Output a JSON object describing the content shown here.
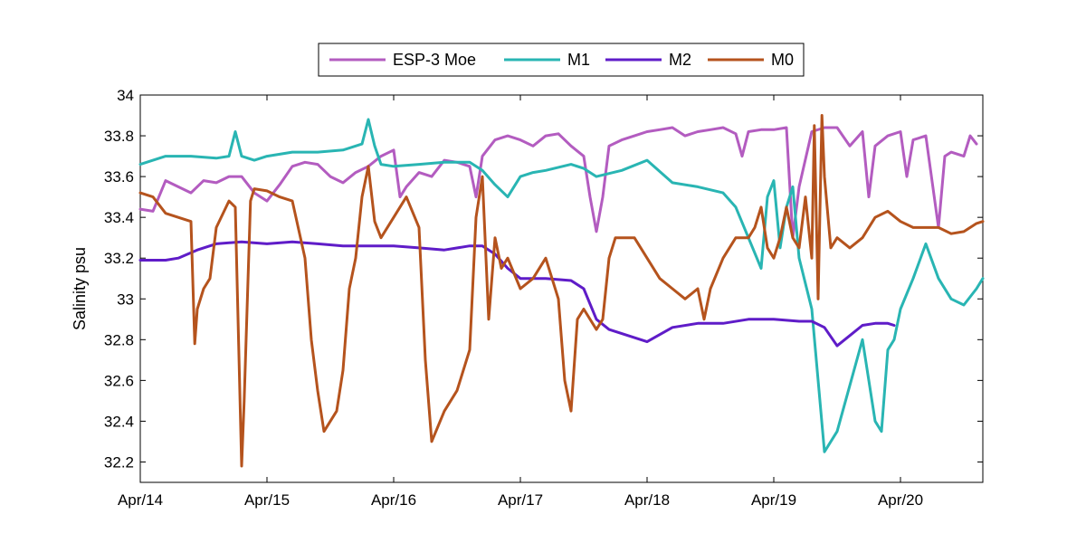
{
  "chart_data": {
    "type": "line",
    "title": "",
    "xlabel": "",
    "ylabel": "Salinity psu",
    "x_tick_labels": [
      "Apr/14",
      "Apr/15",
      "Apr/16",
      "Apr/17",
      "Apr/18",
      "Apr/19",
      "Apr/20"
    ],
    "x_range_days": [
      14.0,
      20.65
    ],
    "ylim": [
      32.1,
      34.0
    ],
    "y_ticks": [
      32.2,
      32.4,
      32.6,
      32.8,
      33.0,
      33.2,
      33.4,
      33.6,
      33.8,
      34.0
    ],
    "y_tick_labels": [
      "32.2",
      "32.4",
      "32.6",
      "32.8",
      "33",
      "33.2",
      "33.4",
      "33.6",
      "33.8",
      "34"
    ],
    "grid": false,
    "legend_position": "top, outside, horizontal",
    "series": [
      {
        "name": "ESP-3 Moe",
        "color": "#b35cc0",
        "x": [
          14.0,
          14.1,
          14.2,
          14.3,
          14.4,
          14.5,
          14.6,
          14.7,
          14.8,
          14.9,
          15.0,
          15.1,
          15.2,
          15.3,
          15.4,
          15.5,
          15.6,
          15.7,
          15.8,
          15.9,
          16.0,
          16.05,
          16.1,
          16.2,
          16.3,
          16.4,
          16.5,
          16.6,
          16.65,
          16.7,
          16.8,
          16.9,
          17.0,
          17.1,
          17.2,
          17.3,
          17.4,
          17.5,
          17.55,
          17.6,
          17.65,
          17.7,
          17.8,
          17.9,
          18.0,
          18.1,
          18.2,
          18.3,
          18.4,
          18.5,
          18.6,
          18.7,
          18.75,
          18.8,
          18.9,
          19.0,
          19.1,
          19.15,
          19.2,
          19.3,
          19.4,
          19.5,
          19.6,
          19.7,
          19.75,
          19.8,
          19.9,
          20.0,
          20.05,
          20.1,
          20.2,
          20.3,
          20.35,
          20.4,
          20.5,
          20.55,
          20.6
        ],
        "values": [
          33.44,
          33.43,
          33.58,
          33.55,
          33.52,
          33.58,
          33.57,
          33.6,
          33.6,
          33.52,
          33.48,
          33.56,
          33.65,
          33.67,
          33.66,
          33.6,
          33.57,
          33.62,
          33.65,
          33.7,
          33.73,
          33.5,
          33.55,
          33.62,
          33.6,
          33.68,
          33.67,
          33.65,
          33.5,
          33.7,
          33.78,
          33.8,
          33.78,
          33.75,
          33.8,
          33.81,
          33.75,
          33.7,
          33.5,
          33.33,
          33.5,
          33.75,
          33.78,
          33.8,
          33.82,
          33.83,
          33.84,
          33.8,
          33.82,
          33.83,
          33.84,
          33.81,
          33.7,
          33.82,
          33.83,
          33.83,
          33.84,
          33.3,
          33.55,
          33.82,
          33.84,
          33.84,
          33.75,
          33.82,
          33.5,
          33.75,
          33.8,
          33.82,
          33.6,
          33.78,
          33.8,
          33.35,
          33.7,
          33.72,
          33.7,
          33.8,
          33.76
        ]
      },
      {
        "name": "M1",
        "color": "#29b5b3",
        "x": [
          14.0,
          14.2,
          14.4,
          14.6,
          14.7,
          14.75,
          14.8,
          14.9,
          15.0,
          15.2,
          15.4,
          15.6,
          15.75,
          15.8,
          15.85,
          15.9,
          16.0,
          16.2,
          16.4,
          16.6,
          16.7,
          16.8,
          16.9,
          17.0,
          17.1,
          17.2,
          17.4,
          17.5,
          17.6,
          17.8,
          18.0,
          18.2,
          18.4,
          18.6,
          18.7,
          18.8,
          18.9,
          18.95,
          19.0,
          19.05,
          19.1,
          19.15,
          19.2,
          19.3,
          19.35,
          19.4,
          19.5,
          19.7,
          19.8,
          19.85,
          19.9,
          19.95,
          20.0,
          20.1,
          20.2,
          20.3,
          20.4,
          20.5,
          20.6,
          20.65
        ],
        "values": [
          33.66,
          33.7,
          33.7,
          33.69,
          33.7,
          33.82,
          33.7,
          33.68,
          33.7,
          33.72,
          33.72,
          33.73,
          33.76,
          33.88,
          33.75,
          33.66,
          33.65,
          33.66,
          33.67,
          33.67,
          33.63,
          33.56,
          33.5,
          33.6,
          33.62,
          33.63,
          33.66,
          33.64,
          33.6,
          33.63,
          33.68,
          33.57,
          33.55,
          33.52,
          33.45,
          33.3,
          33.15,
          33.5,
          33.58,
          33.25,
          33.45,
          33.55,
          33.2,
          32.95,
          32.6,
          32.25,
          32.35,
          32.8,
          32.4,
          32.35,
          32.75,
          32.8,
          32.95,
          33.1,
          33.27,
          33.1,
          33.0,
          32.97,
          33.05,
          33.1
        ]
      },
      {
        "name": "M2",
        "color": "#5f1cc8",
        "x": [
          14.0,
          14.2,
          14.3,
          14.45,
          14.6,
          14.8,
          15.0,
          15.2,
          15.4,
          15.6,
          15.8,
          16.0,
          16.2,
          16.4,
          16.6,
          16.7,
          16.8,
          16.9,
          17.0,
          17.2,
          17.4,
          17.5,
          17.6,
          17.7,
          17.8,
          18.0,
          18.2,
          18.4,
          18.6,
          18.8,
          19.0,
          19.2,
          19.3,
          19.4,
          19.5,
          19.6,
          19.7,
          19.8,
          19.9,
          19.95
        ],
        "values": [
          33.19,
          33.19,
          33.2,
          33.24,
          33.27,
          33.28,
          33.27,
          33.28,
          33.27,
          33.26,
          33.26,
          33.26,
          33.25,
          33.24,
          33.26,
          33.26,
          33.22,
          33.15,
          33.1,
          33.1,
          33.09,
          33.05,
          32.9,
          32.85,
          32.83,
          32.79,
          32.86,
          32.88,
          32.88,
          32.9,
          32.9,
          32.89,
          32.89,
          32.86,
          32.77,
          32.82,
          32.87,
          32.88,
          32.88,
          32.87
        ]
      },
      {
        "name": "M0",
        "color": "#b5531d",
        "x": [
          14.0,
          14.1,
          14.2,
          14.3,
          14.4,
          14.43,
          14.45,
          14.5,
          14.55,
          14.6,
          14.7,
          14.75,
          14.8,
          14.82,
          14.87,
          14.9,
          15.0,
          15.1,
          15.2,
          15.3,
          15.35,
          15.4,
          15.45,
          15.5,
          15.55,
          15.6,
          15.65,
          15.7,
          15.75,
          15.8,
          15.85,
          15.9,
          16.0,
          16.1,
          16.2,
          16.25,
          16.3,
          16.4,
          16.5,
          16.6,
          16.65,
          16.7,
          16.75,
          16.8,
          16.85,
          16.9,
          17.0,
          17.1,
          17.2,
          17.3,
          17.35,
          17.4,
          17.45,
          17.5,
          17.6,
          17.65,
          17.7,
          17.75,
          17.8,
          17.9,
          18.0,
          18.1,
          18.2,
          18.3,
          18.4,
          18.45,
          18.5,
          18.6,
          18.7,
          18.8,
          18.85,
          18.9,
          18.95,
          19.0,
          19.05,
          19.1,
          19.15,
          19.2,
          19.25,
          19.3,
          19.32,
          19.35,
          19.38,
          19.4,
          19.45,
          19.5,
          19.6,
          19.7,
          19.8,
          19.9,
          20.0,
          20.1,
          20.2,
          20.3,
          20.4,
          20.5,
          20.6,
          20.65
        ],
        "values": [
          33.52,
          33.5,
          33.42,
          33.4,
          33.38,
          32.78,
          32.95,
          33.05,
          33.1,
          33.35,
          33.48,
          33.45,
          32.18,
          32.5,
          33.48,
          33.54,
          33.53,
          33.5,
          33.48,
          33.2,
          32.8,
          32.55,
          32.35,
          32.4,
          32.45,
          32.65,
          33.05,
          33.2,
          33.5,
          33.65,
          33.38,
          33.3,
          33.4,
          33.5,
          33.35,
          32.7,
          32.3,
          32.45,
          32.55,
          32.75,
          33.4,
          33.6,
          32.9,
          33.3,
          33.15,
          33.2,
          33.05,
          33.1,
          33.2,
          33.0,
          32.6,
          32.45,
          32.9,
          32.95,
          32.85,
          32.9,
          33.2,
          33.3,
          33.3,
          33.3,
          33.2,
          33.1,
          33.05,
          33.0,
          33.05,
          32.9,
          33.05,
          33.2,
          33.3,
          33.3,
          33.35,
          33.45,
          33.25,
          33.2,
          33.3,
          33.45,
          33.3,
          33.25,
          33.5,
          33.2,
          33.85,
          33.0,
          33.9,
          33.6,
          33.25,
          33.3,
          33.25,
          33.3,
          33.4,
          33.43,
          33.38,
          33.35,
          33.35,
          33.35,
          33.32,
          33.33,
          33.37,
          33.38
        ]
      }
    ]
  }
}
